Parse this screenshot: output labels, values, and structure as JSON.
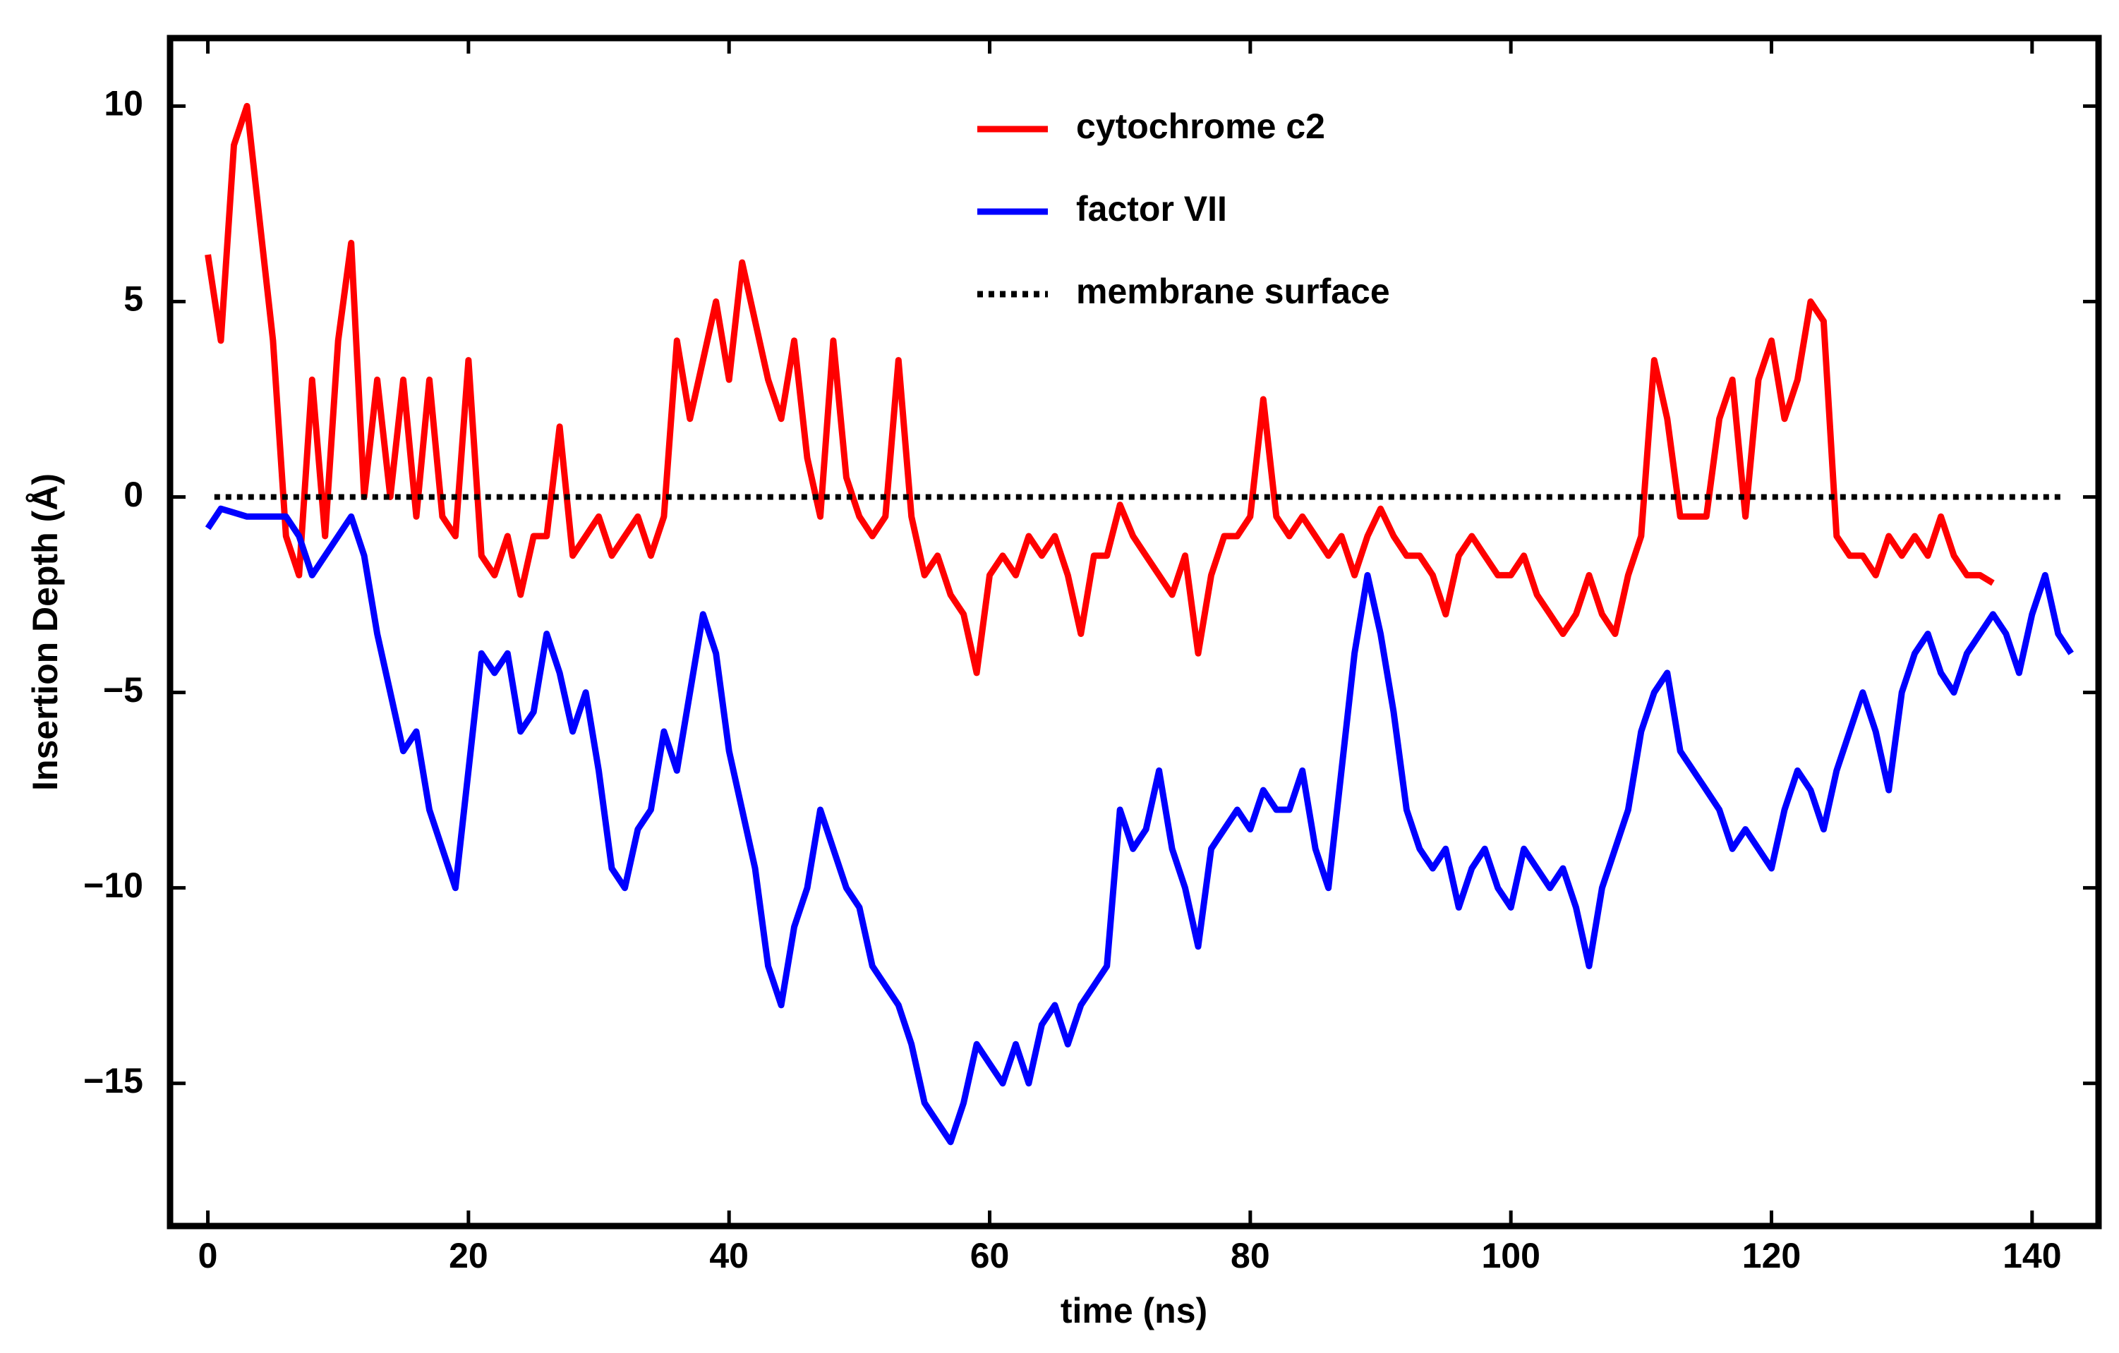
{
  "chart_data": {
    "type": "line",
    "xlabel": "time (ns)",
    "ylabel": "Insertion Depth (Å)",
    "xlim": [
      -2.9,
      145.1
    ],
    "ylim": [
      -18.65,
      11.74
    ],
    "xticks": [
      0,
      20,
      40,
      60,
      80,
      100,
      120,
      140
    ],
    "yticks": [
      {
        "value": -15,
        "label": "−15"
      },
      {
        "value": -10,
        "label": "−10"
      },
      {
        "value": -5,
        "label": "−5"
      },
      0,
      5,
      10
    ],
    "series": [
      {
        "name": "cytochrome c2",
        "color": "#ff0000",
        "linestyle": "solid",
        "x": [
          0,
          1,
          2,
          3,
          4,
          5,
          6,
          7,
          8,
          9,
          10,
          11,
          12,
          13,
          14,
          15,
          16,
          17,
          18,
          19,
          20,
          21,
          22,
          23,
          24,
          25,
          26,
          27,
          28,
          29,
          30,
          31,
          32,
          33,
          34,
          35,
          36,
          37,
          38,
          39,
          40,
          41,
          42,
          43,
          44,
          45,
          46,
          47,
          48,
          49,
          50,
          51,
          52,
          53,
          54,
          55,
          56,
          57,
          58,
          59,
          60,
          61,
          62,
          63,
          64,
          65,
          66,
          67,
          68,
          69,
          70,
          71,
          72,
          73,
          74,
          75,
          76,
          77,
          78,
          79,
          80,
          81,
          82,
          83,
          84,
          85,
          86,
          87,
          88,
          89,
          90,
          91,
          92,
          93,
          94,
          95,
          96,
          97,
          98,
          99,
          100,
          101,
          102,
          103,
          104,
          105,
          106,
          107,
          108,
          109,
          110,
          111,
          112,
          113,
          114,
          115,
          116,
          117,
          118,
          119,
          120,
          121,
          122,
          123,
          124,
          125,
          126,
          127,
          128,
          129,
          130,
          131,
          132,
          133,
          134,
          135,
          136,
          137
        ],
        "values": [
          6.2,
          4,
          9,
          10,
          7,
          4,
          -1,
          -2,
          3,
          -1,
          4,
          6.5,
          0,
          3,
          0,
          3,
          -0.5,
          3,
          -0.5,
          -1,
          3.5,
          -1.5,
          -2,
          -1,
          -2.5,
          -1,
          -1,
          1.8,
          -1.5,
          -1,
          -0.5,
          -1.5,
          -1,
          -0.5,
          -1.5,
          -0.5,
          4,
          2,
          3.5,
          5,
          3,
          6,
          4.5,
          3,
          2,
          4,
          1,
          -0.5,
          4,
          0.5,
          -0.5,
          -1,
          -0.5,
          3.5,
          -0.5,
          -2,
          -1.5,
          -2.5,
          -3,
          -4.5,
          -2,
          -1.5,
          -2,
          -1,
          -1.5,
          -1,
          -2,
          -3.5,
          -1.5,
          -1.5,
          -0.2,
          -1,
          -1.5,
          -2,
          -2.5,
          -1.5,
          -4,
          -2,
          -1,
          -1,
          -0.5,
          2.5,
          -0.5,
          -1,
          -0.5,
          -1,
          -1.5,
          -1,
          -2,
          -1,
          -0.3,
          -1,
          -1.5,
          -1.5,
          -2,
          -3,
          -1.5,
          -1,
          -1.5,
          -2,
          -2,
          -1.5,
          -2.5,
          -3,
          -3.5,
          -3,
          -2,
          -3,
          -3.5,
          -2,
          -1,
          3.5,
          2,
          -0.5,
          -0.5,
          -0.5,
          2,
          3,
          -0.5,
          3,
          4,
          2,
          3,
          5,
          4.5,
          -1,
          -1.5,
          -1.5,
          -2,
          -1,
          -1.5,
          -1,
          -1.5,
          -0.5,
          -1.5,
          -2,
          -2,
          -2.2
        ]
      },
      {
        "name": "factor VII",
        "color": "#0000ff",
        "linestyle": "solid",
        "x": [
          0,
          1,
          2,
          3,
          4,
          5,
          6,
          7,
          8,
          9,
          10,
          11,
          12,
          13,
          14,
          15,
          16,
          17,
          18,
          19,
          20,
          21,
          22,
          23,
          24,
          25,
          26,
          27,
          28,
          29,
          30,
          31,
          32,
          33,
          34,
          35,
          36,
          37,
          38,
          39,
          40,
          41,
          42,
          43,
          44,
          45,
          46,
          47,
          48,
          49,
          50,
          51,
          52,
          53,
          54,
          55,
          56,
          57,
          58,
          59,
          60,
          61,
          62,
          63,
          64,
          65,
          66,
          67,
          68,
          69,
          70,
          71,
          72,
          73,
          74,
          75,
          76,
          77,
          78,
          79,
          80,
          81,
          82,
          83,
          84,
          85,
          86,
          87,
          88,
          89,
          90,
          91,
          92,
          93,
          94,
          95,
          96,
          97,
          98,
          99,
          100,
          101,
          102,
          103,
          104,
          105,
          106,
          107,
          108,
          109,
          110,
          111,
          112,
          113,
          114,
          115,
          116,
          117,
          118,
          119,
          120,
          121,
          122,
          123,
          124,
          125,
          126,
          127,
          128,
          129,
          130,
          131,
          132,
          133,
          134,
          135,
          136,
          137,
          138,
          139,
          140,
          141,
          142,
          143
        ],
        "values": [
          -0.8,
          -0.3,
          -0.4,
          -0.5,
          -0.5,
          -0.5,
          -0.5,
          -1,
          -2,
          -1.5,
          -1,
          -0.5,
          -1.5,
          -3.5,
          -5,
          -6.5,
          -6,
          -8,
          -9,
          -10,
          -7,
          -4,
          -4.5,
          -4,
          -6,
          -5.5,
          -3.5,
          -4.5,
          -6,
          -5,
          -7,
          -9.5,
          -10,
          -8.5,
          -8,
          -6,
          -7,
          -5,
          -3,
          -4,
          -6.5,
          -8,
          -9.5,
          -12,
          -13,
          -11,
          -10,
          -8,
          -9,
          -10,
          -10.5,
          -12,
          -12.5,
          -13,
          -14,
          -15.5,
          -16,
          -16.5,
          -15.5,
          -14,
          -14.5,
          -15,
          -14,
          -15,
          -13.5,
          -13,
          -14,
          -13,
          -12.5,
          -12,
          -8,
          -9,
          -8.5,
          -7,
          -9,
          -10,
          -11.5,
          -9,
          -8.5,
          -8,
          -8.5,
          -7.5,
          -8,
          -8,
          -7,
          -9,
          -10,
          -7,
          -4,
          -2,
          -3.5,
          -5.5,
          -8,
          -9,
          -9.5,
          -9,
          -10.5,
          -9.5,
          -9,
          -10,
          -10.5,
          -9,
          -9.5,
          -10,
          -9.5,
          -10.5,
          -12,
          -10,
          -9,
          -8,
          -6,
          -5,
          -4.5,
          -6.5,
          -7,
          -7.5,
          -8,
          -9,
          -8.5,
          -9,
          -9.5,
          -8,
          -7,
          -7.5,
          -8.5,
          -7,
          -6,
          -5,
          -6,
          -7.5,
          -5,
          -4,
          -3.5,
          -4.5,
          -5,
          -4,
          -3.5,
          -3,
          -3.5,
          -4.5,
          -3,
          -2,
          -3.5,
          -4
        ]
      },
      {
        "name": "membrane surface",
        "color": "#000000",
        "linestyle": "dotted",
        "x": [
          0.5,
          142.5
        ],
        "values": [
          0,
          0
        ]
      }
    ]
  }
}
